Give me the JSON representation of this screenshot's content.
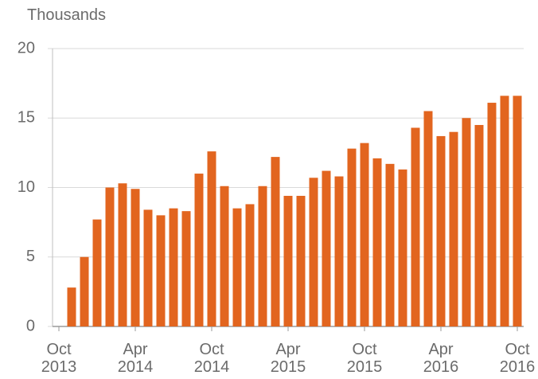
{
  "chart_data": {
    "type": "bar",
    "y_label": "Thousands",
    "categories": [
      "Oct 2013",
      null,
      null,
      null,
      null,
      null,
      "Apr 2014",
      null,
      null,
      null,
      null,
      null,
      "Oct 2014",
      null,
      null,
      null,
      null,
      null,
      "Apr 2015",
      null,
      null,
      null,
      null,
      null,
      "Oct 2015",
      null,
      null,
      null,
      null,
      null,
      "Apr 2016",
      null,
      null,
      null,
      null,
      null,
      "Oct 2016"
    ],
    "values": [
      null,
      2.8,
      5.0,
      7.7,
      10.0,
      10.3,
      9.9,
      8.4,
      8.0,
      8.5,
      8.3,
      11.0,
      12.6,
      10.1,
      8.5,
      8.8,
      10.1,
      12.2,
      9.4,
      9.4,
      10.7,
      11.2,
      10.8,
      12.8,
      13.2,
      12.1,
      11.7,
      11.3,
      14.3,
      15.5,
      13.7,
      14.0,
      15.0,
      14.5,
      16.1,
      16.6,
      16.6
    ],
    "color": "#e2651f",
    "ylim": [
      0,
      20
    ],
    "yticks": [
      0,
      5,
      10,
      15,
      20
    ],
    "grid": true
  }
}
